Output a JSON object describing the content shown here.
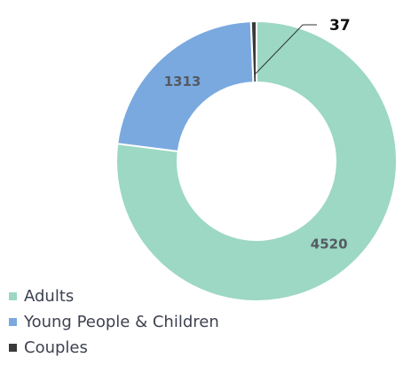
{
  "chart_data": {
    "type": "pie",
    "donut": true,
    "categories": [
      "Adults",
      "Young People & Children",
      "Couples"
    ],
    "values": [
      4520,
      1313,
      37
    ],
    "colors": [
      "#9cd8c3",
      "#7aa9e0",
      "#3a3a3a"
    ],
    "data_labels": [
      "4520",
      "1313",
      "37"
    ],
    "title": "",
    "legend_position": "bottom-left"
  }
}
